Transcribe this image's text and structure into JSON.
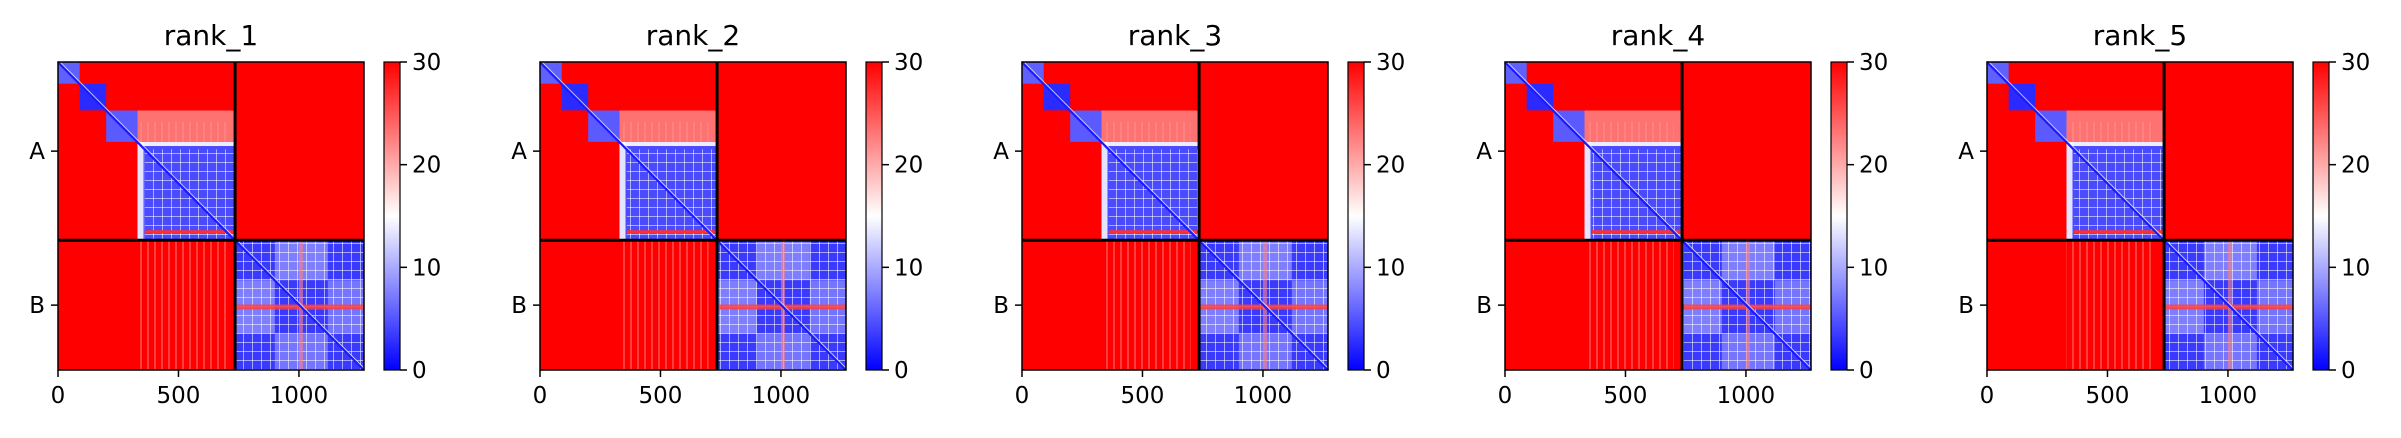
{
  "chart_data": [
    {
      "type": "heatmap",
      "title": "rank_1",
      "chain_labels": [
        "A",
        "B"
      ],
      "chain_boundary": 735,
      "xlim": [
        0,
        1270
      ],
      "xticks": [
        0,
        500,
        1000
      ],
      "colorbar": {
        "min": 0,
        "max": 30,
        "ticks": [
          0,
          10,
          20,
          30
        ],
        "colormap": "bwr"
      },
      "domain_boundaries": [
        90,
        200,
        330,
        735,
        900,
        1120
      ]
    },
    {
      "type": "heatmap",
      "title": "rank_2",
      "chain_labels": [
        "A",
        "B"
      ],
      "chain_boundary": 735,
      "xlim": [
        0,
        1270
      ],
      "xticks": [
        0,
        500,
        1000
      ],
      "colorbar": {
        "min": 0,
        "max": 30,
        "ticks": [
          0,
          10,
          20,
          30
        ],
        "colormap": "bwr"
      },
      "domain_boundaries": [
        90,
        200,
        330,
        735,
        900,
        1120
      ]
    },
    {
      "type": "heatmap",
      "title": "rank_3",
      "chain_labels": [
        "A",
        "B"
      ],
      "chain_boundary": 735,
      "xlim": [
        0,
        1270
      ],
      "xticks": [
        0,
        500,
        1000
      ],
      "colorbar": {
        "min": 0,
        "max": 30,
        "ticks": [
          0,
          10,
          20,
          30
        ],
        "colormap": "bwr"
      },
      "domain_boundaries": [
        90,
        200,
        330,
        735,
        900,
        1120
      ]
    },
    {
      "type": "heatmap",
      "title": "rank_4",
      "chain_labels": [
        "A",
        "B"
      ],
      "chain_boundary": 735,
      "xlim": [
        0,
        1270
      ],
      "xticks": [
        0,
        500,
        1000
      ],
      "colorbar": {
        "min": 0,
        "max": 30,
        "ticks": [
          0,
          10,
          20,
          30
        ],
        "colormap": "bwr"
      },
      "domain_boundaries": [
        90,
        200,
        330,
        735,
        900,
        1120
      ]
    },
    {
      "type": "heatmap",
      "title": "rank_5",
      "chain_labels": [
        "A",
        "B"
      ],
      "chain_boundary": 735,
      "xlim": [
        0,
        1270
      ],
      "xticks": [
        0,
        500,
        1000
      ],
      "colorbar": {
        "min": 0,
        "max": 30,
        "ticks": [
          0,
          10,
          20,
          30
        ],
        "colormap": "bwr"
      },
      "domain_boundaries": [
        90,
        200,
        330,
        735,
        900,
        1120
      ]
    }
  ]
}
